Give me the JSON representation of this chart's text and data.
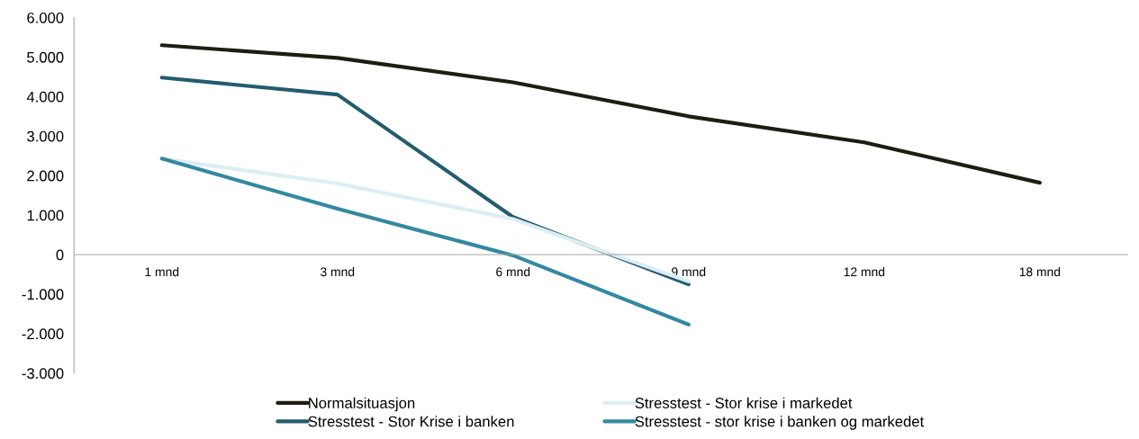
{
  "chart_data": {
    "type": "line",
    "categories": [
      "1 mnd",
      "3 mnd",
      "6 mnd",
      "9 mnd",
      "12 mnd",
      "18 mnd"
    ],
    "series": [
      {
        "name": "Normalsituasjon",
        "color": "#1f1c12",
        "values": [
          5300,
          4980,
          4360,
          3500,
          2840,
          1820
        ]
      },
      {
        "name": "Stresstest - Stor Krise i banken",
        "color": "#245c6e",
        "values": [
          4480,
          4050,
          950,
          -750,
          null,
          null
        ]
      },
      {
        "name": "Stresstest - Stor krise i markedet",
        "color": "#dbeef4",
        "values": [
          2430,
          1800,
          900,
          -680,
          null,
          null
        ]
      },
      {
        "name": "Stresstest - stor krise i banken og markedet",
        "color": "#3389a0",
        "values": [
          2430,
          1160,
          -20,
          -1770,
          null,
          null
        ]
      }
    ],
    "ylim": [
      -3000,
      6000
    ],
    "yticks": [
      {
        "value": -3000,
        "label": "-3.000"
      },
      {
        "value": -2000,
        "label": "-2.000"
      },
      {
        "value": -1000,
        "label": "-1.000"
      },
      {
        "value": 0,
        "label": "0"
      },
      {
        "value": 1000,
        "label": "1.000"
      },
      {
        "value": 2000,
        "label": "2.000"
      },
      {
        "value": 3000,
        "label": "3.000"
      },
      {
        "value": 4000,
        "label": "4.000"
      },
      {
        "value": 5000,
        "label": "5.000"
      },
      {
        "value": 6000,
        "label": "6.000"
      }
    ],
    "grid": false,
    "legend": "bottom",
    "marker": "none",
    "line_style": "solid"
  }
}
